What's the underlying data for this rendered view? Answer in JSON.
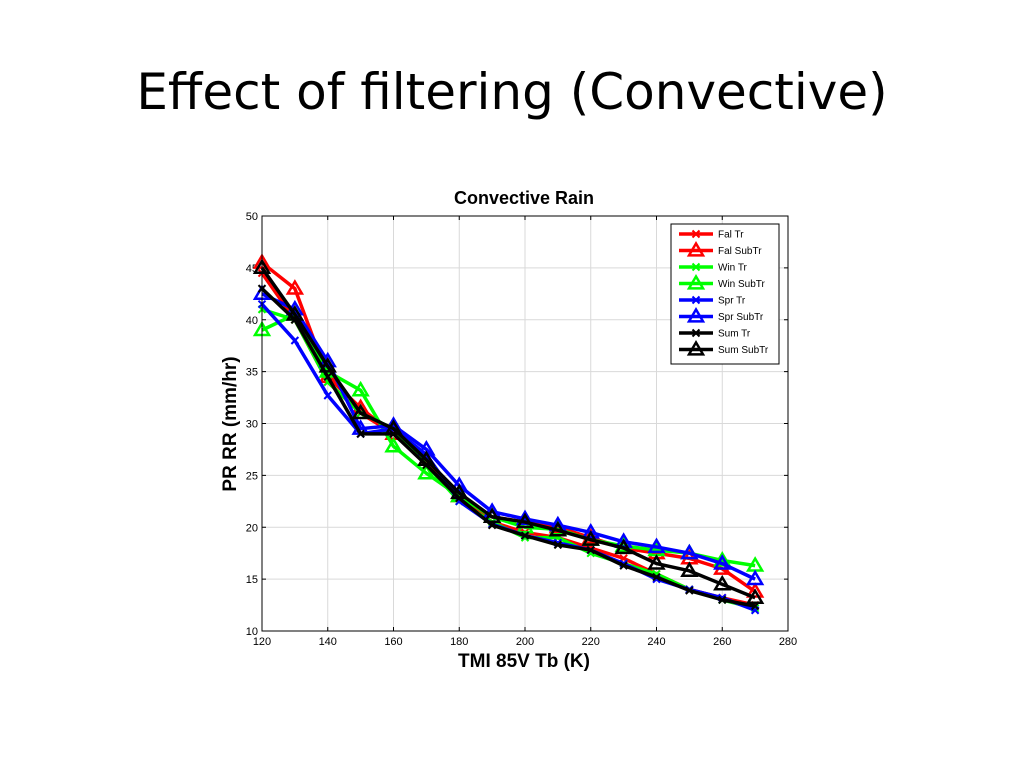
{
  "slide": {
    "title": "Effect of filtering (Convective)"
  },
  "chart_data": {
    "type": "line",
    "title": "Convective Rain",
    "xlabel": "TMI 85V Tb (K)",
    "ylabel": "PR RR (mm/hr)",
    "xlim": [
      120,
      280
    ],
    "ylim": [
      10,
      50
    ],
    "xticks": [
      120,
      140,
      160,
      180,
      200,
      220,
      240,
      260,
      280
    ],
    "yticks": [
      10,
      15,
      20,
      25,
      30,
      35,
      40,
      45,
      50
    ],
    "grid": true,
    "legend_position": "top-right",
    "x": [
      120,
      130,
      140,
      150,
      160,
      170,
      180,
      190,
      200,
      210,
      220,
      230,
      240,
      250,
      260,
      270
    ],
    "series": [
      {
        "name": "Fal Tr",
        "color": "#ff0000",
        "marker": "x",
        "values": [
          44.5,
          40.0,
          34.0,
          31.0,
          29.0,
          26.5,
          23.0,
          20.5,
          19.5,
          19.0,
          18.0,
          17.0,
          15.5,
          14.0,
          13.2,
          12.5
        ]
      },
      {
        "name": "Fal SubTr",
        "color": "#ff0000",
        "marker": "triangle",
        "values": [
          45.5,
          43.0,
          34.5,
          31.5,
          29.0,
          26.5,
          23.0,
          21.0,
          20.5,
          20.0,
          19.0,
          18.0,
          17.5,
          17.0,
          16.0,
          13.8
        ]
      },
      {
        "name": "Win Tr",
        "color": "#00ff00",
        "marker": "x",
        "values": [
          41.0,
          40.0,
          34.0,
          31.0,
          29.5,
          26.0,
          22.5,
          20.5,
          19.0,
          19.0,
          17.5,
          16.5,
          15.5,
          14.0,
          13.0,
          12.2
        ]
      },
      {
        "name": "Win SubTr",
        "color": "#00ff00",
        "marker": "triangle",
        "values": [
          39.0,
          40.5,
          35.0,
          33.2,
          27.8,
          25.2,
          23.0,
          21.0,
          20.0,
          19.8,
          18.8,
          18.2,
          17.8,
          17.5,
          16.8,
          16.3
        ]
      },
      {
        "name": "Spr Tr",
        "color": "#0000ff",
        "marker": "x",
        "values": [
          41.5,
          38.0,
          32.7,
          29.0,
          29.5,
          27.0,
          22.5,
          20.3,
          19.2,
          18.5,
          17.8,
          16.5,
          15.0,
          14.0,
          13.2,
          12.0
        ]
      },
      {
        "name": "Spr SubTr",
        "color": "#0000ff",
        "marker": "triangle",
        "values": [
          42.5,
          41.0,
          36.0,
          29.5,
          29.8,
          27.5,
          24.0,
          21.5,
          20.8,
          20.2,
          19.5,
          18.6,
          18.1,
          17.5,
          16.5,
          15.0
        ]
      },
      {
        "name": "Sum Tr",
        "color": "#000000",
        "marker": "x",
        "values": [
          43.0,
          40.0,
          34.5,
          29.0,
          29.0,
          26.0,
          22.8,
          20.2,
          19.2,
          18.3,
          17.8,
          16.3,
          15.2,
          13.9,
          13.0,
          12.4
        ]
      },
      {
        "name": "Sum SubTr",
        "color": "#000000",
        "marker": "triangle",
        "values": [
          45.0,
          40.5,
          35.5,
          31.0,
          29.5,
          26.5,
          23.3,
          21.0,
          20.5,
          19.7,
          18.8,
          18.0,
          16.5,
          15.8,
          14.5,
          13.2
        ]
      }
    ]
  }
}
